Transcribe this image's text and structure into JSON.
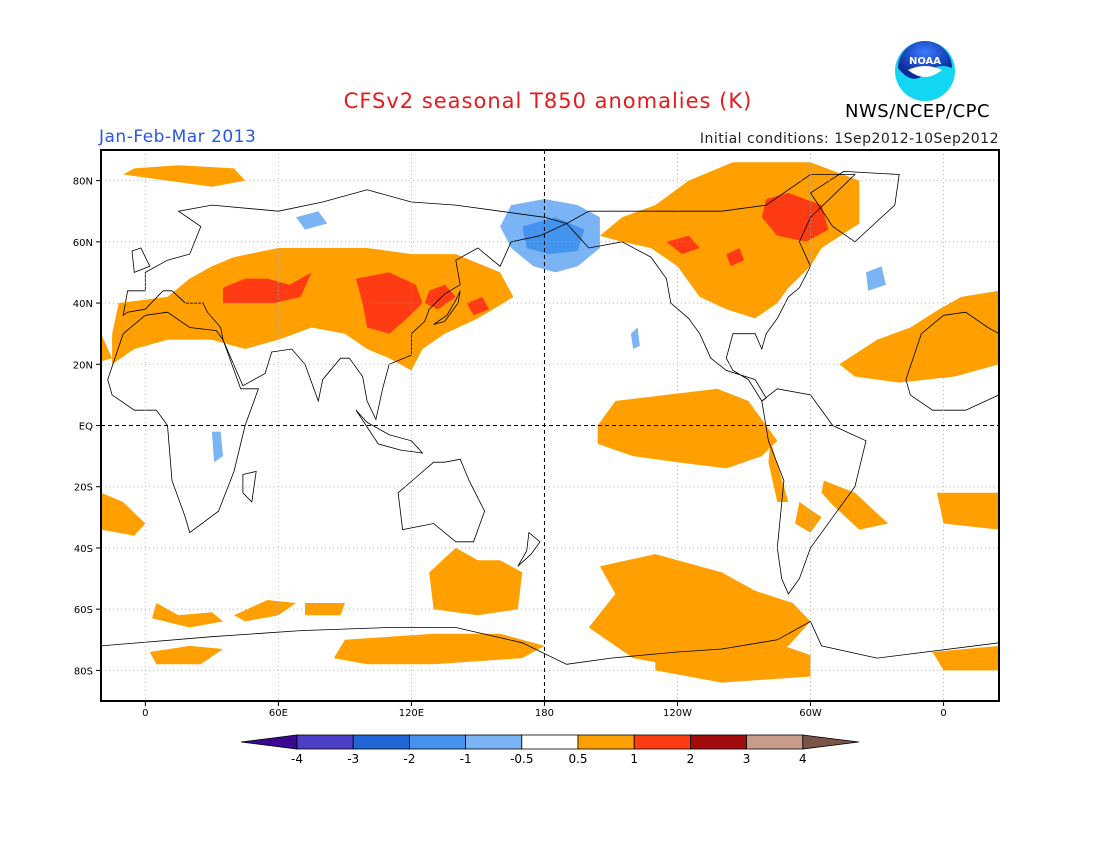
{
  "header": {
    "title": "CFSv2 seasonal T850 anomalies (K)",
    "period": "Jan-Feb-Mar 2013",
    "initial_conditions": "Initial conditions: 1Sep2012-10Sep2012",
    "agency": "NWS/NCEP/CPC",
    "logo_text": "NOAA"
  },
  "map": {
    "projection": "equirectangular",
    "lon_range": [
      -20,
      385
    ],
    "lat_range": [
      -90,
      90
    ],
    "lat_labels": [
      "80N",
      "60N",
      "40N",
      "20N",
      "EQ",
      "20S",
      "40S",
      "60S",
      "80S"
    ],
    "lat_values": [
      80,
      60,
      40,
      20,
      0,
      -20,
      -40,
      -60,
      -80
    ],
    "lon_labels": [
      "0",
      "60E",
      "120E",
      "180",
      "120W",
      "60W",
      "0"
    ],
    "lon_values": [
      0,
      60,
      120,
      180,
      240,
      300,
      360
    ],
    "grid": "dotted",
    "emphasis_lines": [
      "equator",
      "180"
    ],
    "palette": {
      "lt_-4": "#3b0894",
      "-4_-3": "#4b3fc6",
      "-3_-2": "#2166d4",
      "-2_-1": "#4393ef",
      "-1_-0.5": "#7ab4f5",
      "-0.5_0.5": "#ffffff",
      "0.5_1": "#ffa000",
      "1_2": "#ff3b13",
      "2_3": "#a30c0c",
      "3_4": "#c79c8a",
      "gt_4": "#7a5448"
    }
  },
  "colorbar": {
    "labels": [
      "-4",
      "-3",
      "-2",
      "-1",
      "-0.5",
      "0.5",
      "1",
      "2",
      "3",
      "4"
    ],
    "colors": [
      "#3b0894",
      "#4b3fc6",
      "#2166d4",
      "#4393ef",
      "#7ab4f5",
      "#ffffff",
      "#ffa000",
      "#ff3b13",
      "#a30c0c",
      "#c79c8a",
      "#7a5448"
    ]
  }
}
